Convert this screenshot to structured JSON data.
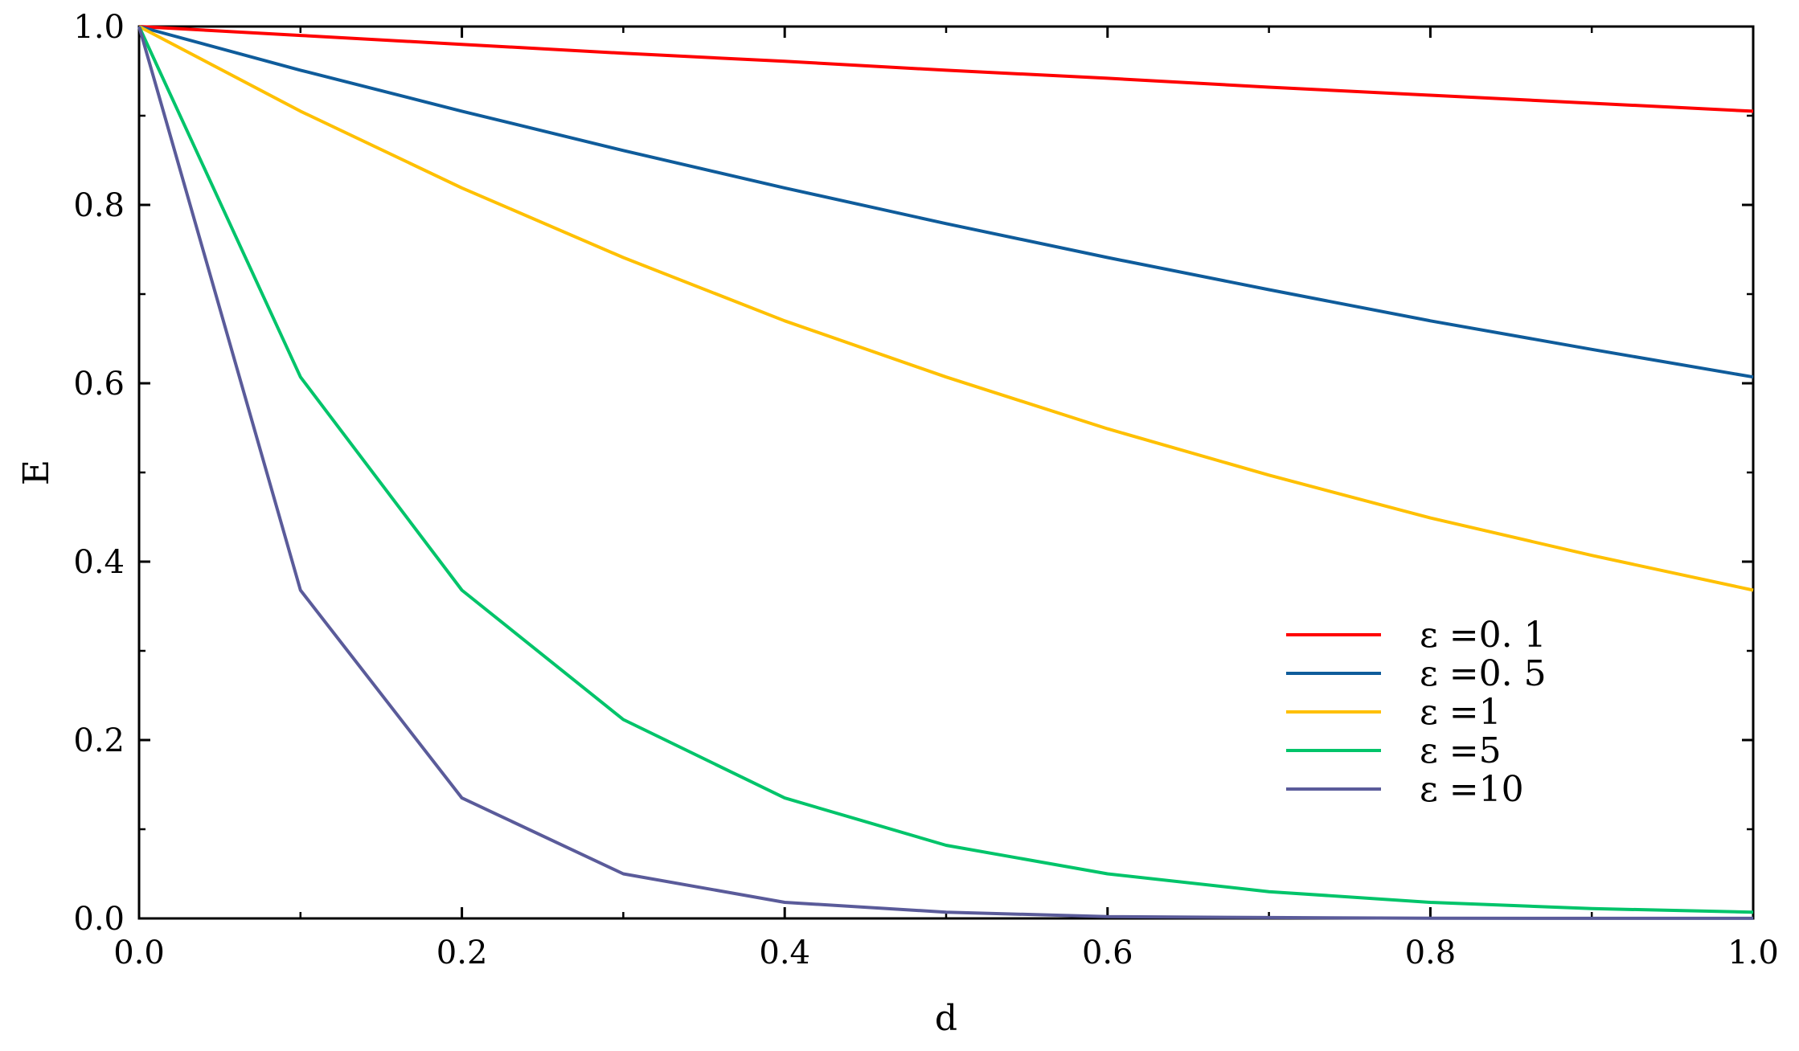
{
  "chart_data": {
    "type": "line",
    "xlabel": "d",
    "ylabel": "E",
    "xlim": [
      0.0,
      1.0
    ],
    "ylim": [
      0.0,
      1.0
    ],
    "x_ticks": [
      "0.0",
      "0.2",
      "0.4",
      "0.6",
      "0.8",
      "1.0"
    ],
    "y_ticks": [
      "0.0",
      "0.2",
      "0.4",
      "0.6",
      "0.8",
      "1.0"
    ],
    "grid": false,
    "legend_position": "bottom-right",
    "x": [
      0.0,
      0.1,
      0.2,
      0.3,
      0.4,
      0.5,
      0.6,
      0.7,
      0.8,
      0.9,
      1.0
    ],
    "series": [
      {
        "name": "ε =0. 1",
        "color": "#ff0000",
        "values": [
          1.0,
          0.99,
          0.98,
          0.97,
          0.961,
          0.951,
          0.942,
          0.932,
          0.923,
          0.914,
          0.905
        ]
      },
      {
        "name": "ε =0. 5",
        "color": "#0f5c9b",
        "values": [
          1.0,
          0.951,
          0.905,
          0.861,
          0.819,
          0.779,
          0.741,
          0.705,
          0.67,
          0.638,
          0.607
        ]
      },
      {
        "name": "ε =1",
        "color": "#ffc000",
        "values": [
          1.0,
          0.905,
          0.819,
          0.741,
          0.67,
          0.607,
          0.549,
          0.497,
          0.449,
          0.407,
          0.368
        ]
      },
      {
        "name": "ε =5",
        "color": "#00c46a",
        "values": [
          1.0,
          0.607,
          0.368,
          0.223,
          0.135,
          0.082,
          0.05,
          0.03,
          0.018,
          0.011,
          0.007
        ]
      },
      {
        "name": "ε =10",
        "color": "#5a5b9a",
        "values": [
          1.0,
          0.368,
          0.135,
          0.05,
          0.018,
          0.007,
          0.002,
          0.001,
          0.0003,
          0.0001,
          5e-05
        ]
      }
    ]
  }
}
